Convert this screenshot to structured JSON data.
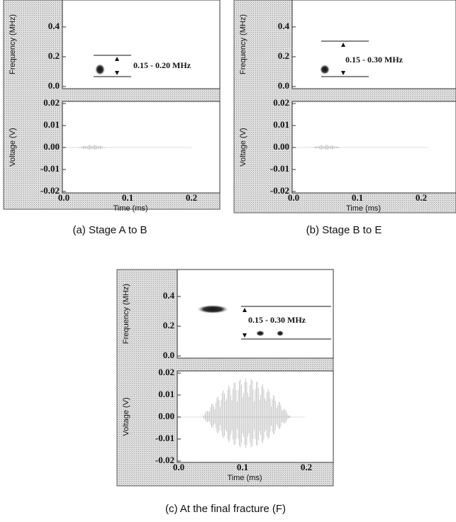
{
  "panels": [
    {
      "caption": "(a) Stage A to B",
      "freq_label": "Frequency (MHz)",
      "volt_label": "Voltage (V)",
      "time_label": "Time (ms)",
      "freq_ticks": [
        "0.4",
        "0.2",
        "0.0"
      ],
      "volt_ticks": [
        "0.02",
        "0.01",
        "0.00",
        "-0.01",
        "-0.02"
      ],
      "time_ticks": [
        "0.0",
        "0.1",
        "0.2"
      ],
      "annotation": "0.15 - 0.20 MHz"
    },
    {
      "caption": "(b) Stage B to E",
      "freq_label": "Frequency (MHz)",
      "volt_label": "Voltage (V)",
      "time_label": "Time (ms)",
      "freq_ticks": [
        "0.4",
        "0.2",
        "0.0"
      ],
      "volt_ticks": [
        "0.02",
        "0.01",
        "0.00",
        "-0.01",
        "-0.02"
      ],
      "time_ticks": [
        "0.0",
        "0.1",
        "0.2"
      ],
      "annotation": "0.15 - 0.30 MHz"
    },
    {
      "caption": "(c) At the final fracture (F)",
      "freq_label": "Frequency (MHz)",
      "volt_label": "Voltage (V)",
      "time_label": "Time (ms)",
      "freq_ticks": [
        "0.4",
        "0.2",
        "0.0"
      ],
      "volt_ticks": [
        "0.02",
        "0.01",
        "0.00",
        "-0.01",
        "-0.02"
      ],
      "time_ticks": [
        "0.0",
        "0.1",
        "0.2"
      ],
      "annotation": "0.15 - 0.30 MHz"
    }
  ]
}
